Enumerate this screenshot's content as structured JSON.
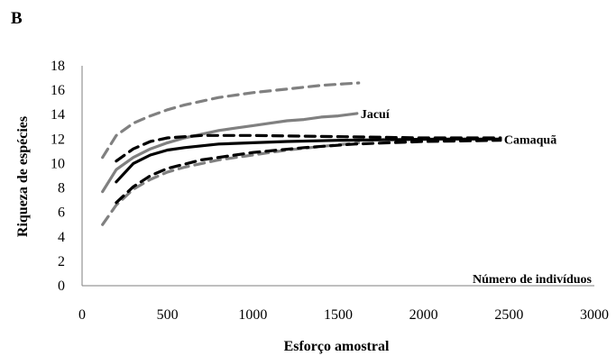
{
  "colors": {
    "jacui": "#808080",
    "camaqua": "#000000",
    "axis": "#7f7f7f"
  },
  "chart_data": {
    "type": "line",
    "panel_label": "B",
    "xlabel": "Esforço amostral",
    "ylabel": "Riqueza de espécies",
    "annotation": "Número de indivíduos",
    "xlim": [
      0,
      3000
    ],
    "ylim": [
      0,
      18
    ],
    "xticks": [
      "0",
      "500",
      "1000",
      "1500",
      "2000",
      "2500",
      "3000"
    ],
    "yticks": [
      "0",
      "2",
      "4",
      "6",
      "8",
      "10",
      "12",
      "14",
      "16",
      "18"
    ],
    "grid": false,
    "series": [
      {
        "name": "Jacuí",
        "color": "#808080",
        "style": "solid",
        "points": [
          [
            120,
            7.7
          ],
          [
            200,
            9.5
          ],
          [
            300,
            10.5
          ],
          [
            400,
            11.2
          ],
          [
            500,
            11.7
          ],
          [
            600,
            12.1
          ],
          [
            700,
            12.4
          ],
          [
            800,
            12.7
          ],
          [
            900,
            12.9
          ],
          [
            1000,
            13.1
          ],
          [
            1100,
            13.3
          ],
          [
            1200,
            13.5
          ],
          [
            1300,
            13.6
          ],
          [
            1400,
            13.8
          ],
          [
            1500,
            13.9
          ],
          [
            1610,
            14.1
          ]
        ]
      },
      {
        "name": "",
        "color": "#808080",
        "style": "dashed",
        "points": [
          [
            120,
            10.5
          ],
          [
            200,
            12.3
          ],
          [
            300,
            13.3
          ],
          [
            400,
            13.9
          ],
          [
            500,
            14.4
          ],
          [
            600,
            14.8
          ],
          [
            700,
            15.1
          ],
          [
            800,
            15.4
          ],
          [
            1000,
            15.8
          ],
          [
            1200,
            16.1
          ],
          [
            1400,
            16.4
          ],
          [
            1620,
            16.6
          ]
        ]
      },
      {
        "name": "",
        "color": "#808080",
        "style": "dashed",
        "points": [
          [
            120,
            5.0
          ],
          [
            200,
            6.6
          ],
          [
            300,
            7.9
          ],
          [
            400,
            8.7
          ],
          [
            500,
            9.3
          ],
          [
            600,
            9.7
          ],
          [
            800,
            10.3
          ],
          [
            1000,
            10.7
          ],
          [
            1200,
            11.1
          ],
          [
            1400,
            11.4
          ],
          [
            1620,
            11.7
          ]
        ]
      },
      {
        "name": "Camaquã",
        "color": "#000000",
        "style": "solid",
        "points": [
          [
            200,
            8.5
          ],
          [
            300,
            10.0
          ],
          [
            400,
            10.7
          ],
          [
            500,
            11.1
          ],
          [
            600,
            11.3
          ],
          [
            800,
            11.6
          ],
          [
            1000,
            11.7
          ],
          [
            1200,
            11.8
          ],
          [
            1500,
            11.9
          ],
          [
            1800,
            11.95
          ],
          [
            2100,
            12.0
          ],
          [
            2450,
            12.0
          ]
        ]
      },
      {
        "name": "",
        "color": "#000000",
        "style": "dashed",
        "points": [
          [
            200,
            10.2
          ],
          [
            300,
            11.2
          ],
          [
            400,
            11.8
          ],
          [
            500,
            12.1
          ],
          [
            700,
            12.3
          ],
          [
            1000,
            12.3
          ],
          [
            1500,
            12.2
          ],
          [
            2000,
            12.1
          ],
          [
            2450,
            12.1
          ]
        ]
      },
      {
        "name": "",
        "color": "#000000",
        "style": "dashed",
        "points": [
          [
            200,
            6.8
          ],
          [
            300,
            8.1
          ],
          [
            400,
            9.0
          ],
          [
            500,
            9.6
          ],
          [
            700,
            10.3
          ],
          [
            1000,
            10.9
          ],
          [
            1300,
            11.3
          ],
          [
            1600,
            11.6
          ],
          [
            2000,
            11.8
          ],
          [
            2450,
            11.9
          ]
        ]
      }
    ]
  }
}
